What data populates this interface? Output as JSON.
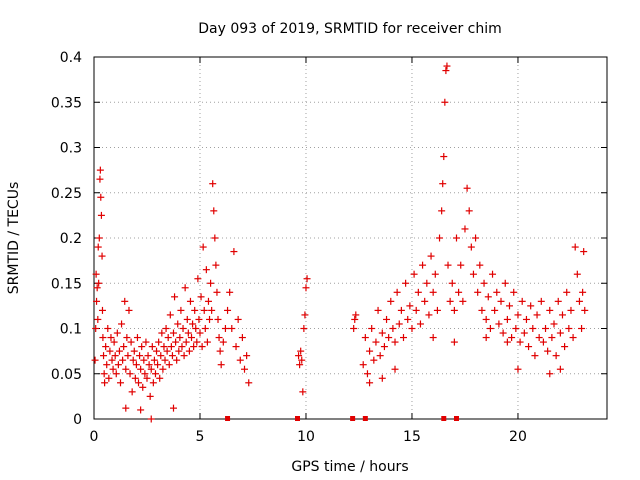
{
  "chart_data": {
    "type": "scatter",
    "title": "Day 093 of 2019, SRMTID for receiver chim",
    "xlabel": "GPS time / hours",
    "ylabel": "SRMTID / TECUs",
    "xlim": [
      0,
      24.2
    ],
    "ylim": [
      0,
      0.4
    ],
    "grid": true,
    "marker": "+",
    "color": "#e00000",
    "x_ticks": [
      0,
      5,
      10,
      15,
      20
    ],
    "x_tick_labels": [
      "0",
      "5",
      "10",
      "15",
      "20"
    ],
    "y_ticks": [
      0,
      0.05,
      0.1,
      0.15,
      0.2,
      0.25,
      0.3,
      0.35,
      0.4
    ],
    "y_tick_labels": [
      "0",
      "0.05",
      "0.1",
      "0.15",
      "0.2",
      "0.25",
      "0.3",
      "0.35",
      "0.4"
    ],
    "series": [
      {
        "name": "SRMTID",
        "points": [
          [
            0.05,
            0.065
          ],
          [
            0.08,
            0.1
          ],
          [
            0.1,
            0.16
          ],
          [
            0.12,
            0.13
          ],
          [
            0.15,
            0.145
          ],
          [
            0.18,
            0.11
          ],
          [
            0.2,
            0.19
          ],
          [
            0.22,
            0.15
          ],
          [
            0.25,
            0.2
          ],
          [
            0.28,
            0.265
          ],
          [
            0.3,
            0.275
          ],
          [
            0.32,
            0.245
          ],
          [
            0.35,
            0.225
          ],
          [
            0.38,
            0.18
          ],
          [
            0.4,
            0.12
          ],
          [
            0.42,
            0.09
          ],
          [
            0.45,
            0.07
          ],
          [
            0.48,
            0.05
          ],
          [
            0.5,
            0.04
          ],
          [
            0.55,
            0.08
          ],
          [
            0.6,
            0.06
          ],
          [
            0.65,
            0.1
          ],
          [
            0.7,
            0.045
          ],
          [
            0.75,
            0.075
          ],
          [
            0.8,
            0.09
          ],
          [
            0.85,
            0.065
          ],
          [
            0.9,
            0.055
          ],
          [
            0.95,
            0.085
          ],
          [
            1.0,
            0.07
          ],
          [
            1.05,
            0.05
          ],
          [
            1.1,
            0.095
          ],
          [
            1.15,
            0.06
          ],
          [
            1.2,
            0.075
          ],
          [
            1.25,
            0.04
          ],
          [
            1.3,
            0.105
          ],
          [
            1.35,
            0.065
          ],
          [
            1.4,
            0.08
          ],
          [
            1.45,
            0.13
          ],
          [
            1.5,
            0.055
          ],
          [
            1.55,
            0.09
          ],
          [
            1.6,
            0.07
          ],
          [
            1.65,
            0.12
          ],
          [
            1.7,
            0.05
          ],
          [
            1.75,
            0.085
          ],
          [
            1.8,
            0.03
          ],
          [
            1.85,
            0.065
          ],
          [
            1.9,
            0.075
          ],
          [
            1.95,
            0.045
          ],
          [
            2.0,
            0.06
          ],
          [
            2.05,
            0.09
          ],
          [
            2.1,
            0.04
          ],
          [
            2.15,
            0.07
          ],
          [
            2.2,
            0.055
          ],
          [
            2.25,
            0.08
          ],
          [
            2.3,
            0.035
          ],
          [
            2.35,
            0.065
          ],
          [
            2.4,
            0.05
          ],
          [
            2.45,
            0.085
          ],
          [
            2.5,
            0.045
          ],
          [
            2.55,
            0.07
          ],
          [
            2.6,
            0.06
          ],
          [
            2.65,
            0.025
          ],
          [
            2.7,
            0.055
          ],
          [
            2.75,
            0.08
          ],
          [
            2.8,
            0.04
          ],
          [
            2.85,
            0.065
          ],
          [
            2.9,
            0.05
          ],
          [
            2.95,
            0.075
          ],
          [
            3.0,
            0.06
          ],
          [
            3.05,
            0.085
          ],
          [
            3.1,
            0.045
          ],
          [
            3.15,
            0.07
          ],
          [
            3.2,
            0.095
          ],
          [
            3.25,
            0.055
          ],
          [
            3.3,
            0.08
          ],
          [
            3.35,
            0.065
          ],
          [
            3.4,
            0.1
          ],
          [
            3.45,
            0.075
          ],
          [
            3.5,
            0.09
          ],
          [
            3.55,
            0.06
          ],
          [
            3.6,
            0.115
          ],
          [
            3.65,
            0.08
          ],
          [
            3.7,
            0.07
          ],
          [
            3.75,
            0.095
          ],
          [
            3.8,
            0.135
          ],
          [
            3.85,
            0.085
          ],
          [
            3.9,
            0.065
          ],
          [
            3.95,
            0.105
          ],
          [
            4.0,
            0.075
          ],
          [
            4.05,
            0.09
          ],
          [
            4.1,
            0.12
          ],
          [
            4.15,
            0.08
          ],
          [
            4.2,
            0.1
          ],
          [
            4.25,
            0.07
          ],
          [
            4.3,
            0.145
          ],
          [
            4.35,
            0.085
          ],
          [
            4.4,
            0.11
          ],
          [
            4.45,
            0.095
          ],
          [
            4.5,
            0.075
          ],
          [
            4.55,
            0.13
          ],
          [
            4.6,
            0.09
          ],
          [
            4.65,
            0.105
          ],
          [
            4.7,
            0.08
          ],
          [
            4.75,
            0.12
          ],
          [
            4.8,
            0.1
          ],
          [
            4.85,
            0.085
          ],
          [
            4.9,
            0.155
          ],
          [
            4.95,
            0.11
          ],
          [
            5.0,
            0.095
          ],
          [
            5.05,
            0.135
          ],
          [
            5.1,
            0.08
          ],
          [
            5.15,
            0.19
          ],
          [
            5.2,
            0.12
          ],
          [
            5.25,
            0.1
          ],
          [
            5.3,
            0.165
          ],
          [
            5.35,
            0.085
          ],
          [
            5.4,
            0.13
          ],
          [
            5.45,
            0.11
          ],
          [
            5.5,
            0.15
          ],
          [
            5.55,
            0.12
          ],
          [
            5.6,
            0.26
          ],
          [
            5.65,
            0.23
          ],
          [
            5.7,
            0.2
          ],
          [
            5.75,
            0.17
          ],
          [
            5.8,
            0.14
          ],
          [
            5.85,
            0.11
          ],
          [
            5.9,
            0.09
          ],
          [
            5.95,
            0.075
          ],
          [
            6.0,
            0.06
          ],
          [
            6.1,
            0.085
          ],
          [
            6.2,
            0.1
          ],
          [
            6.3,
            0.12
          ],
          [
            6.4,
            0.14
          ],
          [
            6.5,
            0.1
          ],
          [
            6.6,
            0.185
          ],
          [
            6.7,
            0.08
          ],
          [
            6.8,
            0.11
          ],
          [
            6.9,
            0.065
          ],
          [
            7.0,
            0.09
          ],
          [
            7.1,
            0.055
          ],
          [
            7.2,
            0.07
          ],
          [
            7.3,
            0.04
          ],
          [
            2.2,
            0.01
          ],
          [
            2.7,
            0.0
          ],
          [
            3.75,
            0.012
          ],
          [
            1.5,
            0.012
          ],
          [
            9.65,
            0.07
          ],
          [
            9.7,
            0.06
          ],
          [
            9.75,
            0.075
          ],
          [
            9.8,
            0.065
          ],
          [
            9.85,
            0.03
          ],
          [
            9.9,
            0.1
          ],
          [
            9.95,
            0.115
          ],
          [
            10.0,
            0.145
          ],
          [
            10.05,
            0.155
          ],
          [
            12.25,
            0.1
          ],
          [
            12.3,
            0.11
          ],
          [
            12.35,
            0.115
          ],
          [
            12.7,
            0.06
          ],
          [
            12.8,
            0.09
          ],
          [
            12.9,
            0.05
          ],
          [
            13.0,
            0.075
          ],
          [
            13.1,
            0.1
          ],
          [
            13.2,
            0.065
          ],
          [
            13.3,
            0.085
          ],
          [
            13.4,
            0.12
          ],
          [
            13.5,
            0.07
          ],
          [
            13.6,
            0.095
          ],
          [
            13.7,
            0.08
          ],
          [
            13.8,
            0.11
          ],
          [
            13.9,
            0.09
          ],
          [
            14.0,
            0.13
          ],
          [
            14.1,
            0.1
          ],
          [
            14.2,
            0.085
          ],
          [
            14.3,
            0.14
          ],
          [
            14.4,
            0.105
          ],
          [
            14.5,
            0.12
          ],
          [
            14.6,
            0.09
          ],
          [
            14.7,
            0.15
          ],
          [
            14.8,
            0.11
          ],
          [
            14.9,
            0.125
          ],
          [
            15.0,
            0.1
          ],
          [
            15.1,
            0.16
          ],
          [
            15.2,
            0.12
          ],
          [
            15.3,
            0.14
          ],
          [
            15.4,
            0.105
          ],
          [
            15.5,
            0.17
          ],
          [
            15.6,
            0.13
          ],
          [
            15.7,
            0.15
          ],
          [
            15.8,
            0.115
          ],
          [
            15.9,
            0.18
          ],
          [
            16.0,
            0.14
          ],
          [
            16.1,
            0.16
          ],
          [
            16.2,
            0.12
          ],
          [
            16.3,
            0.2
          ],
          [
            16.4,
            0.23
          ],
          [
            16.45,
            0.26
          ],
          [
            16.5,
            0.29
          ],
          [
            16.55,
            0.35
          ],
          [
            16.6,
            0.385
          ],
          [
            16.65,
            0.39
          ],
          [
            16.7,
            0.17
          ],
          [
            16.8,
            0.13
          ],
          [
            16.9,
            0.15
          ],
          [
            17.0,
            0.12
          ],
          [
            17.1,
            0.2
          ],
          [
            17.2,
            0.14
          ],
          [
            17.3,
            0.17
          ],
          [
            17.4,
            0.13
          ],
          [
            17.5,
            0.21
          ],
          [
            17.6,
            0.255
          ],
          [
            17.7,
            0.23
          ],
          [
            17.8,
            0.19
          ],
          [
            17.9,
            0.16
          ],
          [
            18.0,
            0.2
          ],
          [
            18.1,
            0.14
          ],
          [
            18.2,
            0.17
          ],
          [
            18.3,
            0.12
          ],
          [
            18.4,
            0.15
          ],
          [
            18.5,
            0.11
          ],
          [
            18.6,
            0.135
          ],
          [
            18.7,
            0.1
          ],
          [
            18.8,
            0.16
          ],
          [
            18.9,
            0.12
          ],
          [
            19.0,
            0.14
          ],
          [
            19.1,
            0.105
          ],
          [
            19.2,
            0.13
          ],
          [
            19.3,
            0.095
          ],
          [
            19.4,
            0.15
          ],
          [
            19.5,
            0.11
          ],
          [
            19.6,
            0.125
          ],
          [
            19.7,
            0.09
          ],
          [
            19.8,
            0.14
          ],
          [
            19.9,
            0.1
          ],
          [
            20.0,
            0.115
          ],
          [
            20.1,
            0.085
          ],
          [
            20.2,
            0.13
          ],
          [
            20.3,
            0.095
          ],
          [
            20.4,
            0.11
          ],
          [
            20.5,
            0.08
          ],
          [
            20.6,
            0.125
          ],
          [
            20.7,
            0.1
          ],
          [
            20.8,
            0.07
          ],
          [
            20.9,
            0.115
          ],
          [
            21.0,
            0.09
          ],
          [
            21.1,
            0.13
          ],
          [
            21.2,
            0.085
          ],
          [
            21.3,
            0.1
          ],
          [
            21.4,
            0.075
          ],
          [
            21.5,
            0.12
          ],
          [
            21.6,
            0.09
          ],
          [
            21.7,
            0.105
          ],
          [
            21.8,
            0.07
          ],
          [
            21.9,
            0.13
          ],
          [
            22.0,
            0.095
          ],
          [
            22.1,
            0.115
          ],
          [
            22.2,
            0.08
          ],
          [
            22.3,
            0.14
          ],
          [
            22.4,
            0.1
          ],
          [
            22.5,
            0.12
          ],
          [
            22.6,
            0.09
          ],
          [
            22.7,
            0.19
          ],
          [
            22.8,
            0.16
          ],
          [
            22.9,
            0.13
          ],
          [
            23.0,
            0.1
          ],
          [
            23.05,
            0.14
          ],
          [
            23.1,
            0.185
          ],
          [
            23.15,
            0.12
          ],
          [
            13.0,
            0.04
          ],
          [
            13.6,
            0.045
          ],
          [
            14.2,
            0.055
          ],
          [
            20.0,
            0.055
          ],
          [
            21.5,
            0.05
          ],
          [
            22.0,
            0.055
          ],
          [
            18.5,
            0.09
          ],
          [
            19.5,
            0.085
          ],
          [
            17.0,
            0.085
          ],
          [
            16.0,
            0.09
          ]
        ]
      }
    ],
    "zero_markers_x": [
      6.3,
      9.6,
      12.2,
      12.8,
      16.5,
      17.1
    ]
  }
}
